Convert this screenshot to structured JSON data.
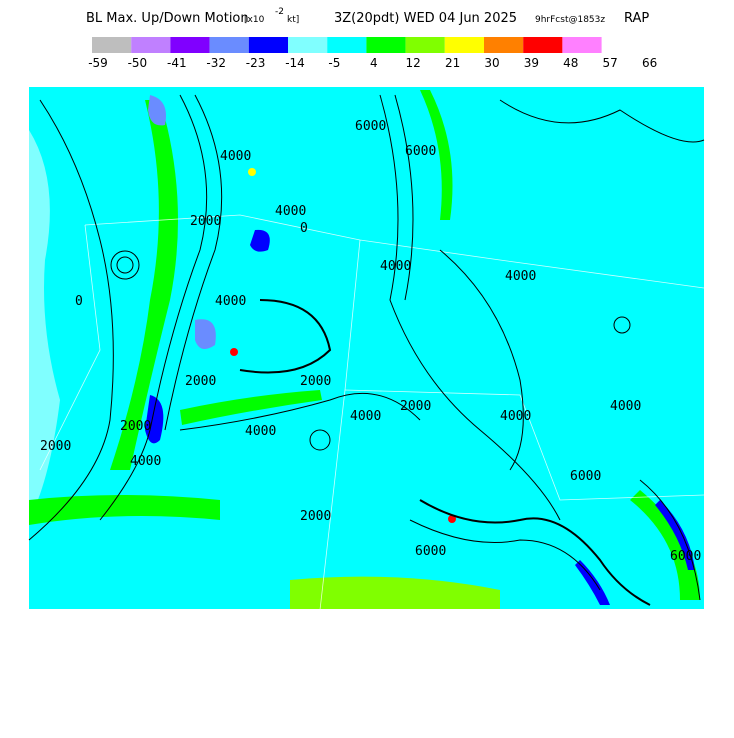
{
  "header": {
    "title": "BL Max. Up/Down Motion",
    "unit_open": "[x10",
    "unit_exp": "-2",
    "unit_close": "kt]",
    "valid": "3Z(20pdt) WED 04 Jun 2025",
    "fcst": "9hrFcst@1853z",
    "model": "RAP"
  },
  "legend": {
    "colors": [
      "#bebebe",
      "#c080ff",
      "#8000ff",
      "#6a8cff",
      "#0000ff",
      "#80ffff",
      "#00ffff",
      "#00ff00",
      "#80ff00",
      "#ffff00",
      "#ff8000",
      "#ff0000",
      "#ff80ff"
    ],
    "labels": [
      "-59",
      "-50",
      "-41",
      "-32",
      "-23",
      "-14",
      "-5",
      "4",
      "12",
      "21",
      "30",
      "39",
      "48",
      "57",
      "66"
    ]
  },
  "map": {
    "contour_labels": [
      "4000",
      "2000",
      "0",
      "4000",
      "4000",
      "2000",
      "2000",
      "4000",
      "2000",
      "4000",
      "2000",
      "4000",
      "6000",
      "6000",
      "4000",
      "2000",
      "4000",
      "4000",
      "6000",
      "6000",
      "4000",
      "6000",
      "0",
      "2000"
    ]
  }
}
